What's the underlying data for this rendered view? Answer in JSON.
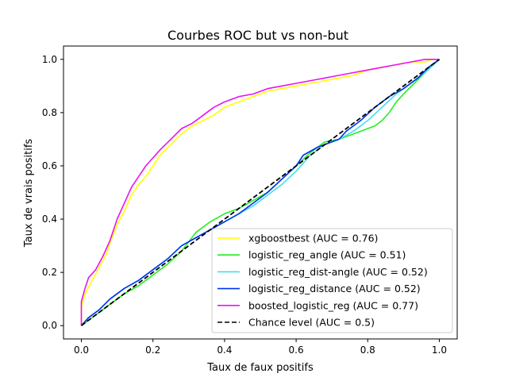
{
  "chart_data": {
    "type": "line",
    "title": "Courbes ROC but vs non-but",
    "xlabel": "Taux de faux positifs",
    "ylabel": "Taux de vrais positifs",
    "xlim": [
      -0.05,
      1.05
    ],
    "ylim": [
      -0.05,
      1.05
    ],
    "x_ticks": [
      0.0,
      0.2,
      0.4,
      0.6,
      0.8,
      1.0
    ],
    "y_ticks": [
      0.0,
      0.2,
      0.4,
      0.6,
      0.8,
      1.0
    ],
    "x_tick_labels": [
      "0.0",
      "0.2",
      "0.4",
      "0.6",
      "0.8",
      "1.0"
    ],
    "y_tick_labels": [
      "0.0",
      "0.2",
      "0.4",
      "0.6",
      "0.8",
      "1.0"
    ],
    "grid": false,
    "legend_position": "lower-right",
    "series": [
      {
        "name": "xgboostbest (AUC = 0.76)",
        "color": "#ffff00",
        "dash": false,
        "points": [
          [
            0,
            0
          ],
          [
            0,
            0.07
          ],
          [
            0.01,
            0.12
          ],
          [
            0.03,
            0.17
          ],
          [
            0.05,
            0.22
          ],
          [
            0.07,
            0.27
          ],
          [
            0.08,
            0.31
          ],
          [
            0.1,
            0.38
          ],
          [
            0.12,
            0.43
          ],
          [
            0.14,
            0.49
          ],
          [
            0.16,
            0.53
          ],
          [
            0.18,
            0.56
          ],
          [
            0.2,
            0.6
          ],
          [
            0.22,
            0.64
          ],
          [
            0.25,
            0.68
          ],
          [
            0.28,
            0.72
          ],
          [
            0.31,
            0.75
          ],
          [
            0.34,
            0.77
          ],
          [
            0.37,
            0.79
          ],
          [
            0.4,
            0.82
          ],
          [
            0.44,
            0.84
          ],
          [
            0.48,
            0.86
          ],
          [
            0.52,
            0.88
          ],
          [
            0.56,
            0.89
          ],
          [
            0.6,
            0.9
          ],
          [
            0.64,
            0.91
          ],
          [
            0.68,
            0.92
          ],
          [
            0.72,
            0.93
          ],
          [
            0.76,
            0.94
          ],
          [
            0.8,
            0.96
          ],
          [
            0.84,
            0.97
          ],
          [
            0.88,
            0.98
          ],
          [
            0.92,
            0.99
          ],
          [
            0.96,
            0.99
          ],
          [
            0.98,
            1.0
          ],
          [
            1.0,
            1.0
          ]
        ]
      },
      {
        "name": "logistic_reg_angle (AUC = 0.51)",
        "color": "#22ee22",
        "dash": false,
        "points": [
          [
            0,
            0
          ],
          [
            0.02,
            0.02
          ],
          [
            0.05,
            0.05
          ],
          [
            0.08,
            0.08
          ],
          [
            0.12,
            0.12
          ],
          [
            0.16,
            0.15
          ],
          [
            0.2,
            0.19
          ],
          [
            0.24,
            0.23
          ],
          [
            0.28,
            0.28
          ],
          [
            0.32,
            0.35
          ],
          [
            0.36,
            0.39
          ],
          [
            0.4,
            0.42
          ],
          [
            0.44,
            0.44
          ],
          [
            0.48,
            0.47
          ],
          [
            0.52,
            0.5
          ],
          [
            0.56,
            0.55
          ],
          [
            0.6,
            0.6
          ],
          [
            0.64,
            0.65
          ],
          [
            0.68,
            0.69
          ],
          [
            0.72,
            0.7
          ],
          [
            0.76,
            0.72
          ],
          [
            0.8,
            0.74
          ],
          [
            0.82,
            0.75
          ],
          [
            0.84,
            0.77
          ],
          [
            0.86,
            0.8
          ],
          [
            0.88,
            0.84
          ],
          [
            0.9,
            0.87
          ],
          [
            0.93,
            0.91
          ],
          [
            0.96,
            0.95
          ],
          [
            1.0,
            1.0
          ]
        ]
      },
      {
        "name": "logistic_reg_dist-angle (AUC = 0.52)",
        "color": "#44ddee",
        "dash": false,
        "points": [
          [
            0,
            0
          ],
          [
            0.02,
            0.03
          ],
          [
            0.05,
            0.06
          ],
          [
            0.08,
            0.1
          ],
          [
            0.12,
            0.14
          ],
          [
            0.16,
            0.17
          ],
          [
            0.2,
            0.21
          ],
          [
            0.24,
            0.25
          ],
          [
            0.28,
            0.3
          ],
          [
            0.32,
            0.33
          ],
          [
            0.36,
            0.36
          ],
          [
            0.4,
            0.39
          ],
          [
            0.44,
            0.42
          ],
          [
            0.48,
            0.45
          ],
          [
            0.52,
            0.49
          ],
          [
            0.56,
            0.53
          ],
          [
            0.6,
            0.58
          ],
          [
            0.64,
            0.64
          ],
          [
            0.68,
            0.68
          ],
          [
            0.72,
            0.7
          ],
          [
            0.76,
            0.73
          ],
          [
            0.8,
            0.77
          ],
          [
            0.84,
            0.82
          ],
          [
            0.88,
            0.87
          ],
          [
            0.92,
            0.91
          ],
          [
            0.96,
            0.95
          ],
          [
            1.0,
            1.0
          ]
        ]
      },
      {
        "name": "logistic_reg_distance (AUC = 0.52)",
        "color": "#0033ee",
        "dash": false,
        "points": [
          [
            0,
            0
          ],
          [
            0.02,
            0.03
          ],
          [
            0.05,
            0.06
          ],
          [
            0.08,
            0.1
          ],
          [
            0.12,
            0.14
          ],
          [
            0.16,
            0.17
          ],
          [
            0.2,
            0.21
          ],
          [
            0.24,
            0.25
          ],
          [
            0.28,
            0.3
          ],
          [
            0.32,
            0.33
          ],
          [
            0.36,
            0.36
          ],
          [
            0.4,
            0.39
          ],
          [
            0.44,
            0.42
          ],
          [
            0.48,
            0.46
          ],
          [
            0.52,
            0.5
          ],
          [
            0.56,
            0.55
          ],
          [
            0.6,
            0.6
          ],
          [
            0.62,
            0.64
          ],
          [
            0.66,
            0.67
          ],
          [
            0.7,
            0.69
          ],
          [
            0.72,
            0.7
          ],
          [
            0.74,
            0.73
          ],
          [
            0.76,
            0.75
          ],
          [
            0.78,
            0.77
          ],
          [
            0.82,
            0.82
          ],
          [
            0.86,
            0.86
          ],
          [
            0.9,
            0.89
          ],
          [
            0.94,
            0.93
          ],
          [
            0.97,
            0.97
          ],
          [
            1.0,
            1.0
          ]
        ]
      },
      {
        "name": "boosted_logistic_reg (AUC = 0.77)",
        "color": "#ee11ee",
        "dash": false,
        "points": [
          [
            0,
            0
          ],
          [
            0,
            0.09
          ],
          [
            0.01,
            0.14
          ],
          [
            0.02,
            0.18
          ],
          [
            0.04,
            0.21
          ],
          [
            0.06,
            0.26
          ],
          [
            0.08,
            0.32
          ],
          [
            0.1,
            0.4
          ],
          [
            0.12,
            0.46
          ],
          [
            0.14,
            0.52
          ],
          [
            0.16,
            0.56
          ],
          [
            0.18,
            0.6
          ],
          [
            0.2,
            0.63
          ],
          [
            0.22,
            0.66
          ],
          [
            0.25,
            0.7
          ],
          [
            0.28,
            0.74
          ],
          [
            0.31,
            0.76
          ],
          [
            0.34,
            0.79
          ],
          [
            0.37,
            0.82
          ],
          [
            0.4,
            0.84
          ],
          [
            0.44,
            0.86
          ],
          [
            0.48,
            0.87
          ],
          [
            0.52,
            0.89
          ],
          [
            0.56,
            0.9
          ],
          [
            0.6,
            0.91
          ],
          [
            0.64,
            0.92
          ],
          [
            0.68,
            0.93
          ],
          [
            0.72,
            0.94
          ],
          [
            0.76,
            0.95
          ],
          [
            0.8,
            0.96
          ],
          [
            0.84,
            0.97
          ],
          [
            0.88,
            0.98
          ],
          [
            0.92,
            0.99
          ],
          [
            0.96,
            1.0
          ],
          [
            1.0,
            1.0
          ]
        ]
      },
      {
        "name": "Chance level (AUC = 0.5)",
        "color": "#000000",
        "dash": true,
        "points": [
          [
            0,
            0
          ],
          [
            1,
            1
          ]
        ]
      }
    ]
  }
}
